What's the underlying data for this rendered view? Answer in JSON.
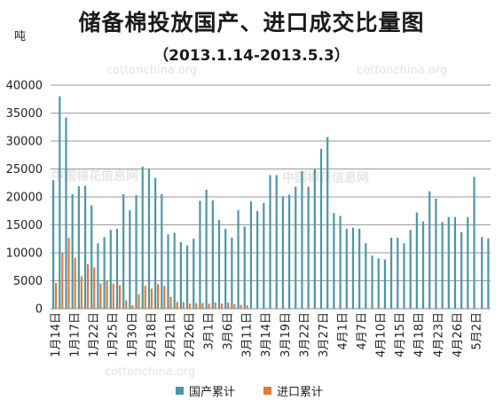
{
  "chart_data": {
    "type": "bar",
    "title": "储备棉投放国产、进口成交比量图",
    "subtitle": "（2013.1.14-2013.5.3）",
    "ylabel": "吨",
    "ylim": [
      0,
      40000
    ],
    "yticks": [
      "0",
      "5000",
      "10000",
      "15000",
      "20000",
      "25000",
      "30000",
      "35000",
      "40000"
    ],
    "grid": true,
    "legend_position": "bottom",
    "categories": [
      "1月14日",
      "1月15日",
      "1月16日",
      "1月17日",
      "1月18日",
      "1月21日",
      "1月22日",
      "1月23日",
      "1月24日",
      "1月25日",
      "1月28日",
      "1月29日",
      "1月30日",
      "1月31日",
      "2月1日",
      "2月18日",
      "2月19日",
      "2月20日",
      "2月21日",
      "2月22日",
      "2月25日",
      "2月26日",
      "2月27日",
      "2月28日",
      "3月1日",
      "3月4日",
      "3月5日",
      "3月6日",
      "3月7日",
      "3月8日",
      "3月11日",
      "3月12日",
      "3月13日",
      "3月14日",
      "3月15日",
      "3月18日",
      "3月19日",
      "3月20日",
      "3月21日",
      "3月22日",
      "3月25日",
      "3月26日",
      "3月27日",
      "3月28日",
      "3月29日",
      "4月1日",
      "4月2日",
      "4月3日",
      "4月4日",
      "4月5日",
      "4月8日",
      "4月9日",
      "4月10日",
      "4月11日",
      "4月12日",
      "4月15日",
      "4月16日",
      "4月17日",
      "4月18日",
      "4月19日",
      "4月22日",
      "4月23日",
      "4月24日",
      "4月25日",
      "4月26日",
      "4月27日",
      "4月28日",
      "5月2日",
      "5月3日"
    ],
    "tick_labels": [
      "1月14日",
      "1月17日",
      "1月22日",
      "1月25日",
      "1月30日",
      "2月18日",
      "2月21日",
      "2月26日",
      "3月1日",
      "3月6日",
      "3月11日",
      "3月14日",
      "3月19日",
      "3月22日",
      "3月27日",
      "4月1日",
      "4月7日",
      "4月10日",
      "4月15日",
      "4月18日",
      "4月23日",
      "4月26日",
      "5月2日"
    ],
    "series": [
      {
        "name": "国产累计",
        "color": "#4a97a8",
        "values": [
          23000,
          38000,
          34200,
          20500,
          21900,
          22000,
          18500,
          11700,
          12800,
          14100,
          14300,
          20500,
          17600,
          20300,
          25400,
          25000,
          23400,
          20500,
          13300,
          13600,
          11900,
          11300,
          12500,
          19300,
          21300,
          19400,
          15900,
          14300,
          12700,
          17600,
          14700,
          19200,
          17500,
          18900,
          23900,
          23900,
          20100,
          20400,
          21800,
          24600,
          21800,
          25000,
          28600,
          30700,
          17100,
          16600,
          14300,
          14500,
          14300,
          11700,
          9500,
          9000,
          8800,
          12700,
          12700,
          11700,
          14100,
          17200,
          15600,
          21000,
          19700,
          15500,
          16400,
          16400,
          13700,
          16400,
          23600,
          12800,
          12600
        ],
        "paired": [
          true,
          true,
          true,
          true,
          true,
          true,
          true,
          true,
          true,
          true,
          true,
          true,
          true,
          true,
          true,
          true,
          true,
          true,
          true,
          true,
          true,
          true,
          true,
          true,
          true,
          true,
          true,
          true,
          true,
          true,
          true,
          true,
          true,
          true,
          true,
          true,
          true,
          true,
          true,
          true,
          true,
          true,
          true,
          true,
          true,
          true,
          true,
          true,
          true,
          true,
          true,
          true,
          true,
          true,
          true,
          true,
          true,
          true,
          true,
          true,
          true,
          true,
          true,
          true,
          true,
          true,
          true,
          false,
          false
        ]
      },
      {
        "name": "进口累计",
        "color": "#e07b39",
        "values": [
          4600,
          10100,
          12700,
          9100,
          5800,
          8000,
          7400,
          4500,
          5000,
          4500,
          4200,
          1500,
          600,
          2600,
          4100,
          3600,
          4400,
          4100,
          2100,
          1200,
          1200,
          900,
          1000,
          1000,
          900,
          1100,
          900,
          1100,
          800,
          700,
          600,
          0,
          0,
          0,
          0,
          0,
          0,
          0,
          0,
          0,
          0,
          0,
          0,
          0,
          0,
          0,
          0,
          0,
          0,
          0,
          0,
          0,
          0,
          0,
          0,
          0,
          0,
          0,
          0,
          0,
          0,
          0,
          0,
          0,
          0,
          0,
          0,
          0,
          0
        ]
      }
    ]
  },
  "watermark": {
    "latin": "cottonchina.org",
    "chinese": "中国棉花信息网"
  }
}
